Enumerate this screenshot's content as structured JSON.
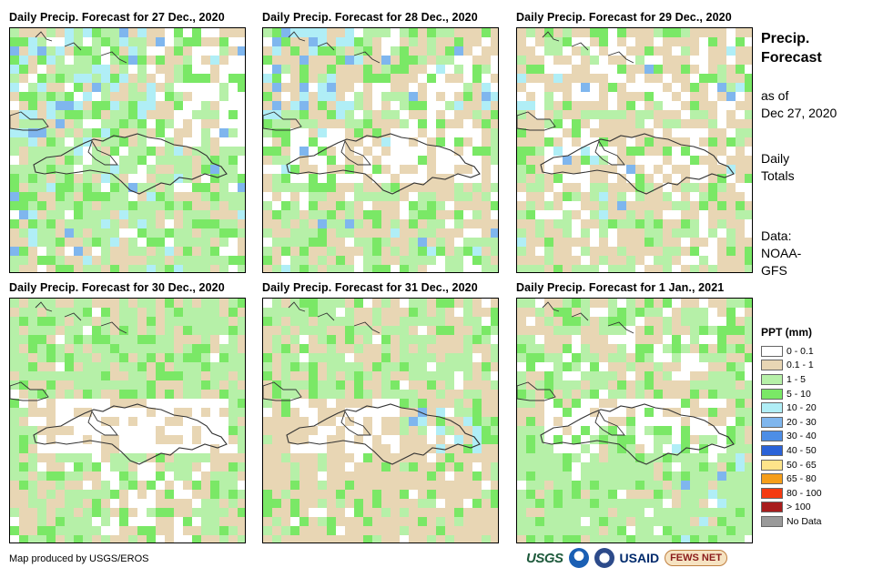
{
  "panels": [
    {
      "title": "Daily Precip. Forecast for 27 Dec., 2020",
      "seed": 11,
      "pattern": "wet"
    },
    {
      "title": "Daily Precip. Forecast for 28 Dec., 2020",
      "seed": 23,
      "pattern": "mixed"
    },
    {
      "title": "Daily Precip. Forecast for 29 Dec., 2020",
      "seed": 37,
      "pattern": "dry"
    },
    {
      "title": "Daily Precip. Forecast for 30 Dec., 2020",
      "seed": 41,
      "pattern": "dryland"
    },
    {
      "title": "Daily Precip. Forecast for 31 Dec., 2020",
      "seed": 53,
      "pattern": "drysouth"
    },
    {
      "title": "Daily Precip. Forecast for 1 Jan., 2021",
      "seed": 67,
      "pattern": "wetsouth"
    }
  ],
  "side": {
    "title_line1": "Precip.",
    "title_line2": "Forecast",
    "asof_line1": "as of",
    "asof_line2": "Dec 27, 2020",
    "totals_line1": "Daily",
    "totals_line2": "Totals",
    "data_line1": "Data:",
    "data_line2": "NOAA-",
    "data_line3": "GFS"
  },
  "legend": {
    "title": "PPT (mm)",
    "items": [
      {
        "label": "0 - 0.1",
        "color": "#ffffff"
      },
      {
        "label": "0.1 - 1",
        "color": "#e8d6b4"
      },
      {
        "label": "1 - 5",
        "color": "#b6f0a8"
      },
      {
        "label": "5 - 10",
        "color": "#7ae866"
      },
      {
        "label": "10 - 20",
        "color": "#b0eef6"
      },
      {
        "label": "20 - 30",
        "color": "#7fb6ee"
      },
      {
        "label": "30 - 40",
        "color": "#4d8ee6"
      },
      {
        "label": "40 - 50",
        "color": "#2a62d8"
      },
      {
        "label": "50 - 65",
        "color": "#fde48a"
      },
      {
        "label": "65 - 80",
        "color": "#f59e1a"
      },
      {
        "label": "80 - 100",
        "color": "#f53a10"
      },
      {
        "label": "> 100",
        "color": "#a81c1c"
      },
      {
        "label": "No Data",
        "color": "#9a9a9a"
      }
    ]
  },
  "credit": "Map produced by USGS/EROS",
  "logos": {
    "usgs": "USGS",
    "usaid": "USAID",
    "fews": "FEWS NET"
  }
}
